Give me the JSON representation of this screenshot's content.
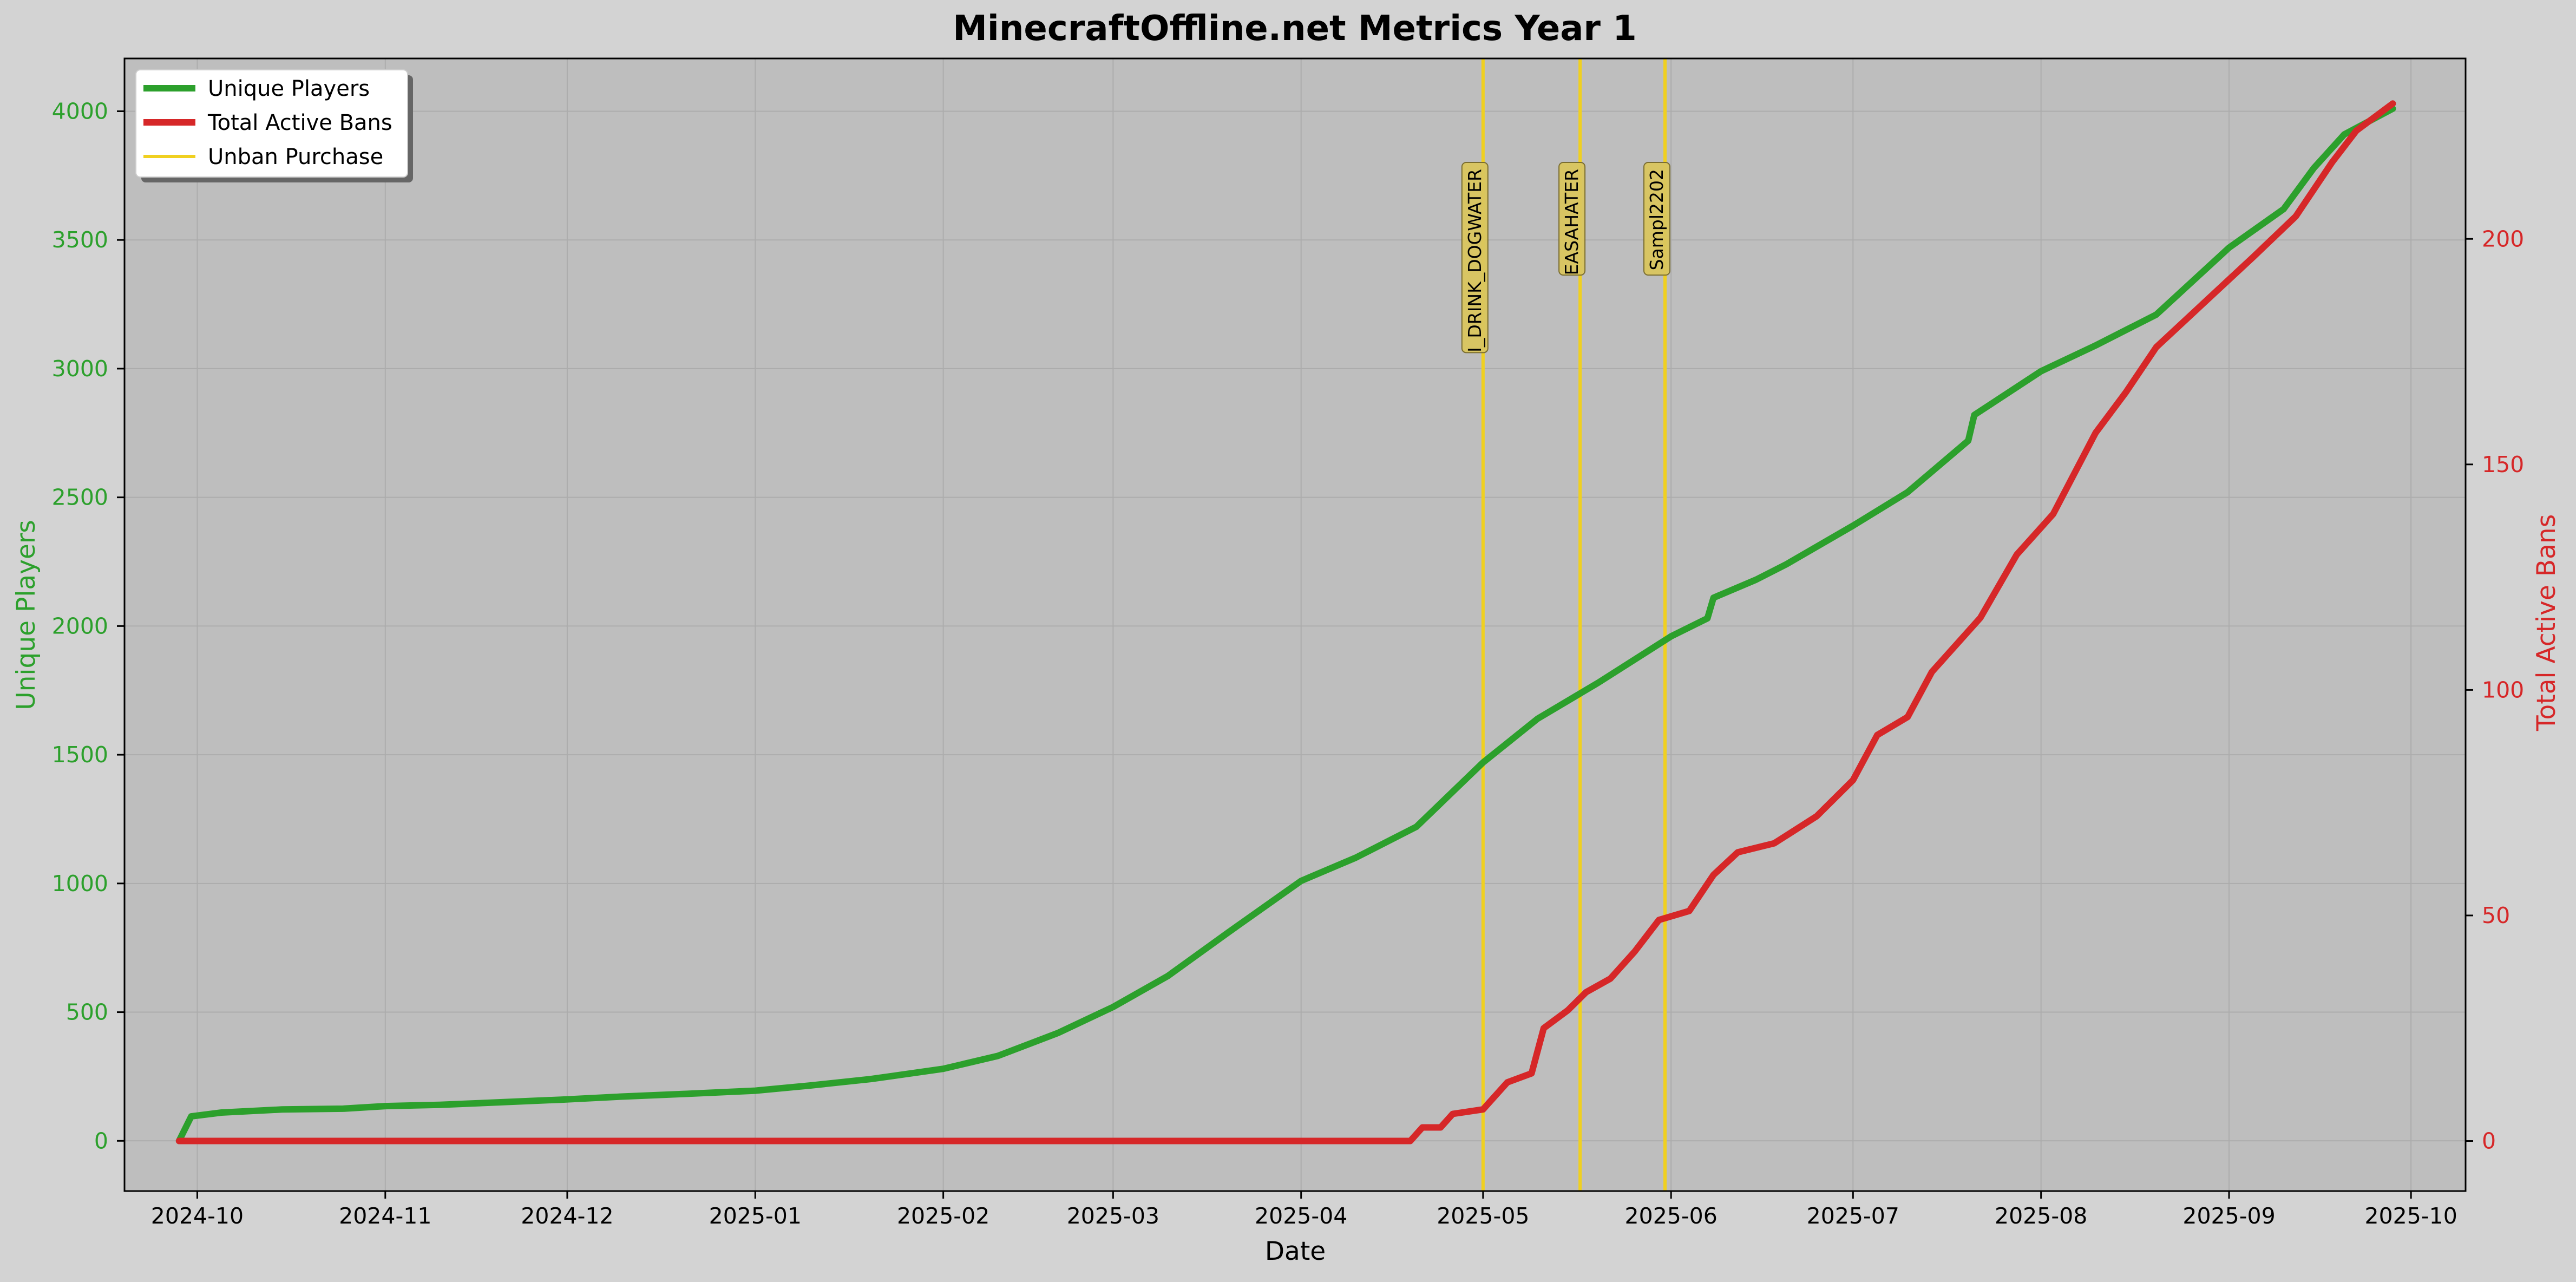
{
  "chart_data": {
    "type": "line",
    "title": "MinecraftOffline.net Metrics Year 1",
    "xlabel": "Date",
    "ylabel_left": "Unique Players",
    "ylabel_right": "Total Active Bans",
    "x_tick_labels": [
      "2024-10",
      "2024-11",
      "2024-12",
      "2025-01",
      "2025-02",
      "2025-03",
      "2025-04",
      "2025-05",
      "2025-06",
      "2025-07",
      "2025-08",
      "2025-09",
      "2025-10"
    ],
    "x_range": [
      "2024-09-19",
      "2025-10-10"
    ],
    "y_left_ticks": [
      0,
      500,
      1000,
      1500,
      2000,
      2500,
      3000,
      3500,
      4000
    ],
    "y_left_range": [
      -195,
      4205
    ],
    "y_right_ticks": [
      0,
      50,
      100,
      150,
      200
    ],
    "y_right_range": [
      -11.1,
      240
    ],
    "grid": true,
    "legend_position": "top-left",
    "colors": {
      "players": "#2ca02c",
      "bans": "#d62728",
      "unban": "#f0d020",
      "plot_bg": "#bebebe",
      "fig_bg": "#d3d3d3"
    },
    "series": [
      {
        "name": "Unique Players",
        "axis": "left",
        "points": [
          [
            "2024-09-28",
            0
          ],
          [
            "2024-09-30",
            95
          ],
          [
            "2024-10-05",
            110
          ],
          [
            "2024-10-15",
            122
          ],
          [
            "2024-10-25",
            125
          ],
          [
            "2024-11-01",
            135
          ],
          [
            "2024-11-10",
            140
          ],
          [
            "2024-11-20",
            150
          ],
          [
            "2024-11-30",
            160
          ],
          [
            "2024-12-10",
            172
          ],
          [
            "2024-12-20",
            182
          ],
          [
            "2025-01-01",
            195
          ],
          [
            "2025-01-10",
            215
          ],
          [
            "2025-01-20",
            240
          ],
          [
            "2025-02-01",
            280
          ],
          [
            "2025-02-10",
            330
          ],
          [
            "2025-02-20",
            420
          ],
          [
            "2025-03-01",
            520
          ],
          [
            "2025-03-10",
            640
          ],
          [
            "2025-03-20",
            810
          ],
          [
            "2025-04-01",
            1010
          ],
          [
            "2025-04-10",
            1100
          ],
          [
            "2025-04-20",
            1220
          ],
          [
            "2025-05-01",
            1470
          ],
          [
            "2025-05-10",
            1640
          ],
          [
            "2025-05-20",
            1780
          ],
          [
            "2025-06-01",
            1960
          ],
          [
            "2025-06-07",
            2030
          ],
          [
            "2025-06-08",
            2110
          ],
          [
            "2025-06-15",
            2180
          ],
          [
            "2025-06-20",
            2240
          ],
          [
            "2025-07-01",
            2390
          ],
          [
            "2025-07-10",
            2520
          ],
          [
            "2025-07-20",
            2720
          ],
          [
            "2025-07-21",
            2820
          ],
          [
            "2025-08-01",
            2990
          ],
          [
            "2025-08-10",
            3090
          ],
          [
            "2025-08-20",
            3210
          ],
          [
            "2025-09-01",
            3470
          ],
          [
            "2025-09-10",
            3620
          ],
          [
            "2025-09-15",
            3780
          ],
          [
            "2025-09-20",
            3910
          ],
          [
            "2025-09-28",
            4010
          ]
        ]
      },
      {
        "name": "Total Active Bans",
        "axis": "right",
        "points": [
          [
            "2024-09-28",
            0
          ],
          [
            "2025-04-19",
            0
          ],
          [
            "2025-04-21",
            3
          ],
          [
            "2025-04-24",
            3
          ],
          [
            "2025-04-26",
            6
          ],
          [
            "2025-05-01",
            7
          ],
          [
            "2025-05-05",
            13
          ],
          [
            "2025-05-09",
            15
          ],
          [
            "2025-05-11",
            25
          ],
          [
            "2025-05-15",
            29
          ],
          [
            "2025-05-18",
            33
          ],
          [
            "2025-05-22",
            36
          ],
          [
            "2025-05-26",
            42
          ],
          [
            "2025-05-30",
            49
          ],
          [
            "2025-06-04",
            51
          ],
          [
            "2025-06-08",
            59
          ],
          [
            "2025-06-12",
            64
          ],
          [
            "2025-06-18",
            66
          ],
          [
            "2025-06-25",
            72
          ],
          [
            "2025-07-01",
            80
          ],
          [
            "2025-07-05",
            90
          ],
          [
            "2025-07-10",
            94
          ],
          [
            "2025-07-14",
            104
          ],
          [
            "2025-07-18",
            110
          ],
          [
            "2025-07-22",
            116
          ],
          [
            "2025-07-28",
            130
          ],
          [
            "2025-08-03",
            139
          ],
          [
            "2025-08-10",
            157
          ],
          [
            "2025-08-15",
            166
          ],
          [
            "2025-08-20",
            176
          ],
          [
            "2025-08-28",
            186
          ],
          [
            "2025-09-05",
            196
          ],
          [
            "2025-09-12",
            205
          ],
          [
            "2025-09-18",
            217
          ],
          [
            "2025-09-22",
            224
          ],
          [
            "2025-09-28",
            230
          ]
        ]
      },
      {
        "name": "Unban Purchase",
        "type": "vline",
        "events": [
          {
            "date": "2025-05-01",
            "label": "I_DRINK_DOGWATER"
          },
          {
            "date": "2025-05-17",
            "label": "EASAHATER"
          },
          {
            "date": "2025-05-31",
            "label": "Sampl2202"
          }
        ]
      }
    ]
  }
}
